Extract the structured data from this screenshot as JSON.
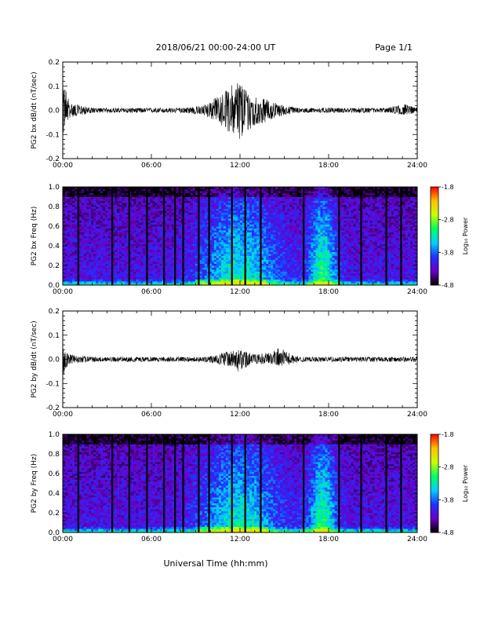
{
  "header": {
    "title": "2018/06/21  00:00-24:00 UT",
    "page": "Page 1/1"
  },
  "xlabel": "Universal Time (hh:mm)",
  "x_ticks": [
    "00:00",
    "06:00",
    "12:00",
    "18:00",
    "24:00"
  ],
  "colorbar": {
    "label": "Log₁₀ Power",
    "ticks": [
      "-1.8",
      "-2.8",
      "-3.8",
      "-4.8"
    ],
    "colors": [
      "#000000",
      "#6a00c8",
      "#2030ff",
      "#00d0ff",
      "#00ff60",
      "#c8ff00",
      "#ffc000",
      "#ff0000"
    ]
  },
  "chart_data": [
    {
      "type": "line",
      "ylabel": "PG2 bx dB/dt (nT/sec)",
      "ylim": [
        -0.2,
        0.2
      ],
      "y_ticks": [
        "0.2",
        "0.1",
        "0.0",
        "-0.1",
        "-0.2"
      ],
      "xlim": [
        "00:00",
        "24:00"
      ],
      "series": [
        {
          "x": [
            "00:00",
            "00:10",
            "00:30",
            "02:00",
            "04:00",
            "06:00",
            "08:00",
            "09:30",
            "10:30",
            "11:00",
            "11:30",
            "12:00",
            "12:30",
            "13:00",
            "14:00",
            "15:00",
            "16:00",
            "18:00",
            "20:00",
            "22:00",
            "23:00",
            "24:00"
          ],
          "max": [
            0.09,
            0.1,
            0.03,
            0.01,
            0.01,
            0.01,
            0.01,
            0.02,
            0.06,
            0.08,
            0.11,
            0.13,
            0.08,
            0.06,
            0.04,
            0.02,
            0.01,
            0.01,
            0.01,
            0.01,
            0.03,
            0.01
          ],
          "min": [
            -0.12,
            -0.06,
            -0.03,
            -0.01,
            -0.01,
            -0.01,
            -0.01,
            -0.02,
            -0.05,
            -0.08,
            -0.1,
            -0.13,
            -0.09,
            -0.07,
            -0.04,
            -0.02,
            -0.01,
            -0.01,
            -0.01,
            -0.01,
            -0.02,
            -0.01
          ]
        }
      ]
    },
    {
      "type": "heatmap",
      "ylabel": "PG2 bx Freq (Hz)",
      "ylim": [
        0.0,
        1.0
      ],
      "y_ticks": [
        "1.0",
        "0.8",
        "0.6",
        "0.4",
        "0.2",
        "0.0"
      ],
      "xlim": [
        "00:00",
        "24:00"
      ],
      "colorbar_range": [
        -4.8,
        -1.8
      ],
      "gap_hours": [
        1.05,
        3.35,
        4.5,
        5.7,
        6.85,
        7.6,
        8.15,
        9.2,
        9.9,
        11.45,
        12.35,
        13.4,
        16.3,
        18.7,
        20.2,
        21.9,
        22.9
      ]
    },
    {
      "type": "line",
      "ylabel": "PG2 by dB/dt (nT/sec)",
      "ylim": [
        -0.2,
        0.2
      ],
      "y_ticks": [
        "0.2",
        "0.1",
        "0.0",
        "-0.1",
        "-0.2"
      ],
      "xlim": [
        "00:00",
        "24:00"
      ],
      "series": [
        {
          "x": [
            "00:00",
            "00:10",
            "00:30",
            "02:00",
            "04:00",
            "06:00",
            "08:00",
            "09:30",
            "10:30",
            "11:00",
            "11:30",
            "12:00",
            "12:30",
            "13:00",
            "14:00",
            "14:40",
            "15:30",
            "16:00",
            "18:00",
            "20:00",
            "22:00",
            "24:00"
          ],
          "max": [
            0.05,
            0.03,
            0.02,
            0.01,
            0.01,
            0.01,
            0.01,
            0.01,
            0.02,
            0.03,
            0.04,
            0.04,
            0.03,
            0.02,
            0.03,
            0.05,
            0.02,
            0.01,
            0.01,
            0.01,
            0.01,
            0.01
          ],
          "min": [
            -0.08,
            -0.04,
            -0.02,
            -0.01,
            -0.01,
            -0.01,
            -0.01,
            -0.01,
            -0.02,
            -0.03,
            -0.03,
            -0.06,
            -0.03,
            -0.02,
            -0.02,
            -0.03,
            -0.02,
            -0.01,
            -0.01,
            -0.01,
            -0.01,
            -0.01
          ]
        }
      ]
    },
    {
      "type": "heatmap",
      "ylabel": "PG2 by Freq (Hz)",
      "ylim": [
        0.0,
        1.0
      ],
      "y_ticks": [
        "1.0",
        "0.8",
        "0.6",
        "0.4",
        "0.2",
        "0.0"
      ],
      "xlim": [
        "00:00",
        "24:00"
      ],
      "colorbar_range": [
        -4.8,
        -1.8
      ],
      "gap_hours": [
        1.05,
        3.35,
        4.5,
        5.7,
        6.85,
        7.6,
        8.15,
        9.2,
        9.9,
        11.45,
        12.35,
        13.4,
        16.3,
        18.7,
        20.2,
        21.9,
        22.9
      ]
    }
  ]
}
